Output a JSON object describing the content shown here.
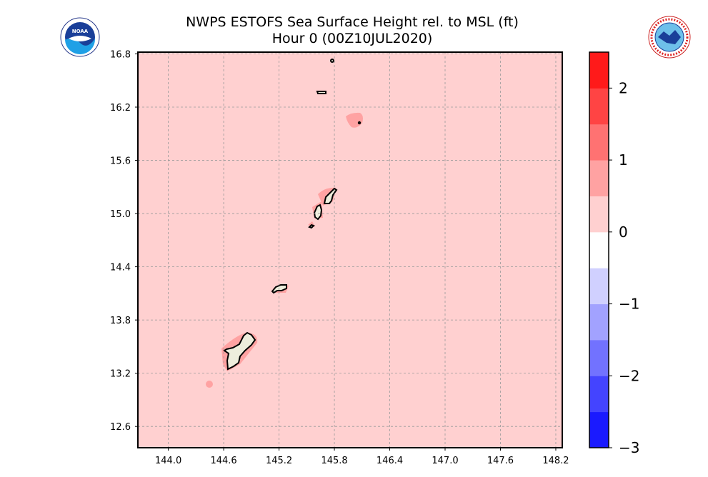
{
  "title_line1": "NWPS ESTOFS Sea Surface Height rel. to MSL (ft)",
  "title_line2": "Hour 0 (00Z10JUL2020)",
  "logos": {
    "left": {
      "name": "NOAA",
      "text": "NOAA"
    },
    "right": {
      "name": "National Weather Service"
    }
  },
  "chart_data": {
    "type": "heatmap",
    "title": "NWPS ESTOFS Sea Surface Height rel. to MSL (ft)",
    "subtitle": "Hour 0 (00Z10JUL2020)",
    "xlim": [
      143.67,
      148.27
    ],
    "ylim": [
      12.36,
      16.82
    ],
    "x_ticks": [
      "144.0",
      "144.6",
      "145.2",
      "145.8",
      "146.4",
      "147.0",
      "147.6",
      "148.2"
    ],
    "y_ticks": [
      "16.8",
      "16.2",
      "15.6",
      "15.0",
      "14.4",
      "13.8",
      "13.2",
      "12.6"
    ],
    "grid": true,
    "background_level": "0 to 0.5 ft",
    "nearshore_level": "0.5 to 1 ft",
    "land_color": "#eeeedd",
    "colorbar": {
      "levels": [
        -3,
        -2.5,
        -2,
        -1.5,
        -1,
        -0.5,
        0,
        0.5,
        1,
        1.5,
        2,
        2.5
      ],
      "colors": [
        "#1a1aff",
        "#4444ff",
        "#7272ff",
        "#a2a2ff",
        "#d0d0ff",
        "#ffffff",
        "#ffd0d0",
        "#ffa2a2",
        "#ff7272",
        "#ff4444",
        "#ff1a1a"
      ],
      "tick_labels": [
        "−3",
        "−2",
        "−1",
        "0",
        "1",
        "2"
      ],
      "tick_values": [
        -3,
        -2,
        -1,
        0,
        1,
        2
      ]
    }
  }
}
